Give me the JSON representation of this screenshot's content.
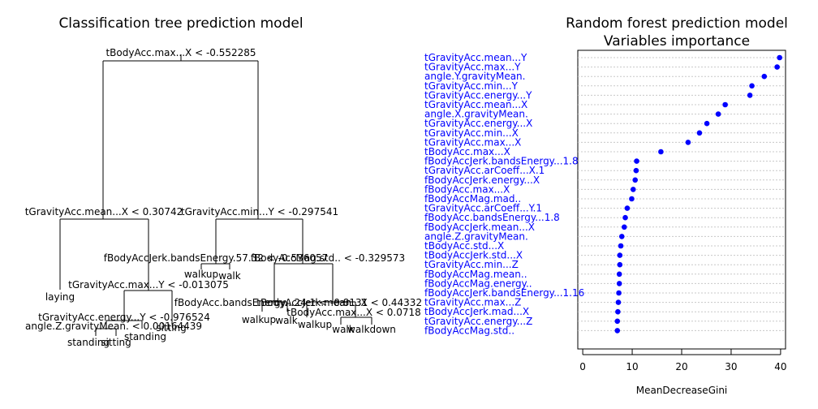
{
  "chart_data": [
    {
      "type": "tree",
      "title": "Classification tree prediction model",
      "split_labels": [
        "tBodyAcc.max...X < -0.552285",
        "tGravityAcc.mean...X < 0.30742",
        "tGravityAcc.min...Y < -0.297541",
        "tGravityAcc.max...Y < -0.013075",
        "tGravityAcc.energy...Y < -0.976524",
        "angle.Z.gravityMean. < 0.00164439",
        "fBodyAccJerk.bandsEnergy.57.32 < -0.536057",
        "fBodyAccMag.std.. < -0.329573",
        "fBodyAcc.bandsEnergy...24.1 < -0.8131",
        "tBodyAccJerk.mean...X < 0.443322",
        "tBodyAcc.max...X < 0.0718"
      ],
      "leaf_labels": [
        "laying",
        "standing",
        "sitting",
        "sitting",
        "standing",
        "walkup",
        "walk",
        "walkup",
        "walk",
        "walkup",
        "walk",
        "walkdown"
      ]
    },
    {
      "type": "scatter",
      "title": "Random forest prediction model",
      "subtitle": "Variables importance",
      "xlabel": "MeanDecreaseGini",
      "ylabel": "",
      "xlim": [
        -1,
        41
      ],
      "x_ticks": [
        0,
        10,
        20,
        30,
        40
      ],
      "grid": true,
      "point_color": "#0000ff",
      "label_color": "#0000ff",
      "categories": [
        "tGravityAcc.mean...Y",
        "tGravityAcc.max...Y",
        "angle.Y.gravityMean.",
        "tGravityAcc.min...Y",
        "tGravityAcc.energy...Y",
        "tGravityAcc.mean...X",
        "angle.X.gravityMean.",
        "tGravityAcc.energy...X",
        "tGravityAcc.min...X",
        "tGravityAcc.max...X",
        "tBodyAcc.max...X",
        "fBodyAccJerk.bandsEnergy...1.8",
        "tGravityAcc.arCoeff...X.1",
        "fBodyAccJerk.energy...X",
        "fBodyAcc.max...X",
        "fBodyAccMag.mad..",
        "tGravityAcc.arCoeff...Y.1",
        "fBodyAcc.bandsEnergy...1.8",
        "fBodyAccJerk.mean...X",
        "angle.Z.gravityMean.",
        "tBodyAcc.std...X",
        "tBodyAccJerk.std...X",
        "tGravityAcc.min...Z",
        "fBodyAccMag.mean..",
        "fBodyAccMag.energy..",
        "fBodyAccJerk.bandsEnergy...1.16",
        "tGravityAcc.max...Z",
        "tBodyAccJerk.mad...X",
        "tGravityAcc.energy...Z",
        "fBodyAccMag.std.."
      ],
      "values": [
        39.8,
        39.3,
        36.7,
        34.2,
        33.8,
        28.8,
        27.4,
        25.1,
        23.6,
        21.3,
        15.8,
        10.9,
        10.8,
        10.6,
        10.2,
        9.9,
        9.0,
        8.6,
        8.4,
        7.9,
        7.7,
        7.5,
        7.5,
        7.4,
        7.4,
        7.3,
        7.2,
        7.1,
        7.0,
        7.0
      ]
    }
  ]
}
